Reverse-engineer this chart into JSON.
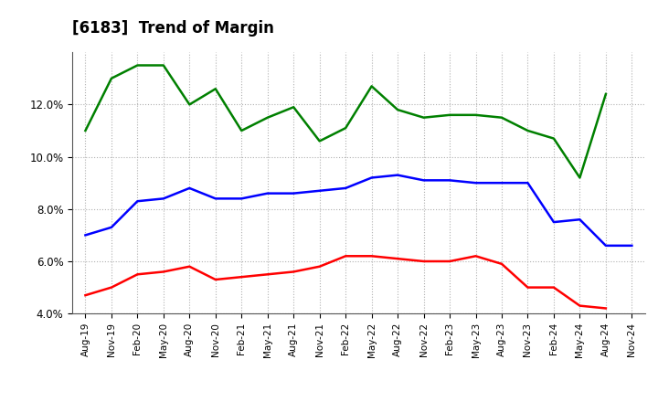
{
  "title": "[6183]  Trend of Margin",
  "x_labels": [
    "Aug-19",
    "Nov-19",
    "Feb-20",
    "May-20",
    "Aug-20",
    "Nov-20",
    "Feb-21",
    "May-21",
    "Aug-21",
    "Nov-21",
    "Feb-22",
    "May-22",
    "Aug-22",
    "Nov-22",
    "Feb-23",
    "May-23",
    "Aug-23",
    "Nov-23",
    "Feb-24",
    "May-24",
    "Aug-24",
    "Nov-24"
  ],
  "ordinary_income": [
    7.0,
    7.3,
    8.3,
    8.4,
    8.8,
    8.4,
    8.4,
    8.6,
    8.6,
    8.7,
    8.8,
    9.2,
    9.3,
    9.1,
    9.1,
    9.0,
    9.0,
    9.0,
    7.5,
    7.6,
    6.6,
    6.6
  ],
  "net_income": [
    4.7,
    5.0,
    5.5,
    5.6,
    5.8,
    5.3,
    5.4,
    5.5,
    5.6,
    5.8,
    6.2,
    6.2,
    6.1,
    6.0,
    6.0,
    6.2,
    5.9,
    5.0,
    5.0,
    4.3,
    4.2,
    null
  ],
  "operating_cashflow": [
    11.0,
    13.0,
    13.5,
    13.5,
    12.0,
    12.6,
    11.0,
    11.5,
    11.9,
    10.6,
    11.1,
    12.7,
    11.8,
    11.5,
    11.6,
    11.6,
    11.5,
    11.0,
    10.7,
    9.2,
    12.4,
    null
  ],
  "ylim": [
    4.0,
    14.0
  ],
  "yticks": [
    4.0,
    6.0,
    8.0,
    10.0,
    12.0
  ],
  "colors": {
    "ordinary_income": "#0000ff",
    "net_income": "#ff0000",
    "operating_cashflow": "#008000"
  },
  "background_color": "#ffffff",
  "grid_color": "#b0b0b0"
}
